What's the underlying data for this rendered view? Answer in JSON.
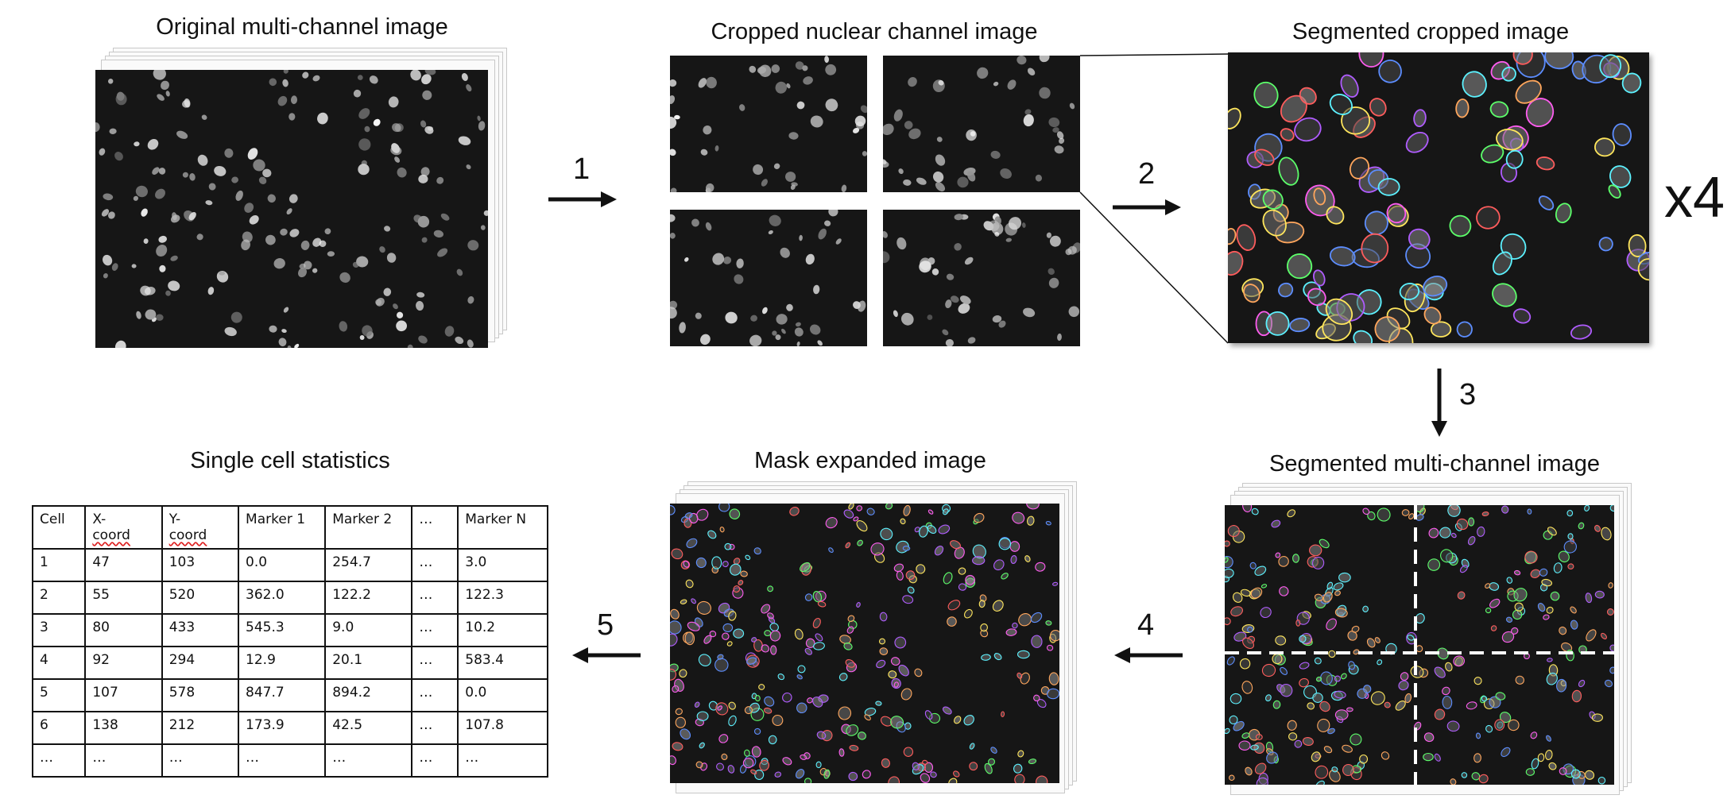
{
  "titles": {
    "original": "Original multi-channel image",
    "cropped": "Cropped nuclear channel image",
    "segmented_cropped": "Segmented cropped image",
    "stats": "Single cell statistics",
    "mask_expanded": "Mask expanded image",
    "segmented_multi": "Segmented multi-channel image"
  },
  "steps": [
    "1",
    "2",
    "3",
    "4",
    "5"
  ],
  "multiplier": "x4",
  "table": {
    "headers": [
      {
        "line1": "Cell",
        "line2": ""
      },
      {
        "line1": "X-",
        "line2": "coord"
      },
      {
        "line1": "Y-",
        "line2": "coord"
      },
      {
        "line1": "Marker 1",
        "line2": ""
      },
      {
        "line1": "Marker 2",
        "line2": ""
      },
      {
        "line1": "…",
        "line2": ""
      },
      {
        "line1": "Marker N",
        "line2": ""
      }
    ],
    "rows": [
      [
        "1",
        "47",
        "103",
        "0.0",
        "254.7",
        "…",
        "3.0"
      ],
      [
        "2",
        "55",
        "520",
        "362.0",
        "122.2",
        "…",
        "122.3"
      ],
      [
        "3",
        "80",
        "433",
        "545.3",
        "9.0",
        "…",
        "10.2"
      ],
      [
        "4",
        "92",
        "294",
        "12.9",
        "20.1",
        "…",
        "583.4"
      ],
      [
        "5",
        "107",
        "578",
        "847.7",
        "894.2",
        "…",
        "0.0"
      ],
      [
        "6",
        "138",
        "212",
        "173.9",
        "42.5",
        "…",
        "107.8"
      ],
      [
        "…",
        "…",
        "…",
        "…",
        "…",
        "…",
        "…"
      ]
    ]
  },
  "colors": {
    "background": "#161616",
    "outlines": [
      "#ff5c5c",
      "#5cff6a",
      "#5c8dff",
      "#ffe65c",
      "#ff5cf0",
      "#5cf2ff",
      "#ffa65c",
      "#b05cff"
    ]
  }
}
